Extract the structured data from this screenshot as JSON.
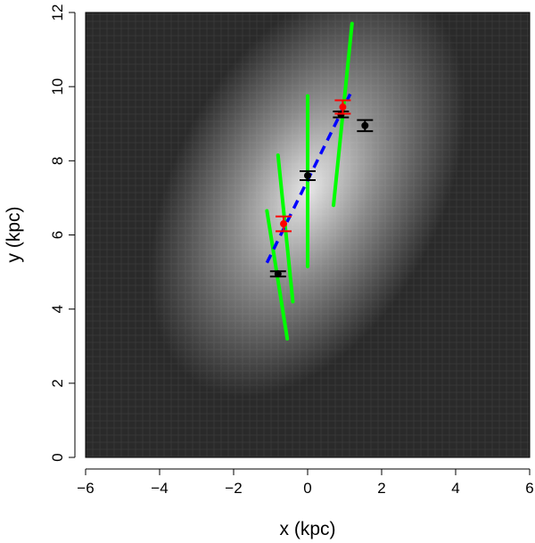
{
  "chart_data": {
    "type": "scatter",
    "title": "",
    "xlabel": "x (kpc)",
    "ylabel": "y (kpc)",
    "xlim": [
      -6,
      6
    ],
    "ylim": [
      0,
      12
    ],
    "x_ticks": [
      -6,
      -4,
      -2,
      0,
      2,
      4,
      6
    ],
    "y_ticks": [
      0,
      2,
      4,
      6,
      8,
      10,
      12
    ],
    "x_tick_labels": [
      "−6",
      "−4",
      "−2",
      "0",
      "2",
      "4",
      "6"
    ],
    "y_tick_labels": [
      "0",
      "2",
      "4",
      "6",
      "8",
      "10",
      "12"
    ],
    "grid": false,
    "background": {
      "type": "heatmap",
      "description": "galaxy intensity image",
      "center": [
        0,
        7.2
      ],
      "colors": {
        "peak": "#e6e6e6",
        "low": "#2a2a2a"
      }
    },
    "series": [
      {
        "kind": "line-segments",
        "color": "#00ff00",
        "segments": [
          {
            "x": [
              -1.1,
              -0.55
            ],
            "y": [
              6.65,
              3.2
            ]
          },
          {
            "x": [
              -0.8,
              -0.4
            ],
            "y": [
              8.15,
              4.2
            ]
          },
          {
            "x": [
              0.0,
              0.0
            ],
            "y": [
              9.75,
              5.15
            ]
          },
          {
            "x": [
              0.7,
              1.2
            ],
            "y": [
              6.8,
              11.7
            ]
          }
        ]
      },
      {
        "kind": "dashed-line",
        "color": "#0000ff",
        "x": [
          -1.1,
          1.15
        ],
        "y": [
          5.25,
          9.8
        ]
      },
      {
        "kind": "points-with-error-bars",
        "color": "#000000",
        "points": [
          {
            "x": -0.8,
            "y": 4.95,
            "yerr": 0.07
          },
          {
            "x": 0.0,
            "y": 7.6,
            "yerr": 0.12
          },
          {
            "x": 0.9,
            "y": 9.25,
            "yerr": 0.08
          },
          {
            "x": 1.55,
            "y": 8.95,
            "yerr": 0.15
          }
        ]
      },
      {
        "kind": "points-with-error-bars",
        "color": "#ff0000",
        "points": [
          {
            "x": -0.65,
            "y": 6.3,
            "yerr": 0.2
          },
          {
            "x": 0.95,
            "y": 9.45,
            "yerr": 0.18
          }
        ]
      }
    ]
  }
}
